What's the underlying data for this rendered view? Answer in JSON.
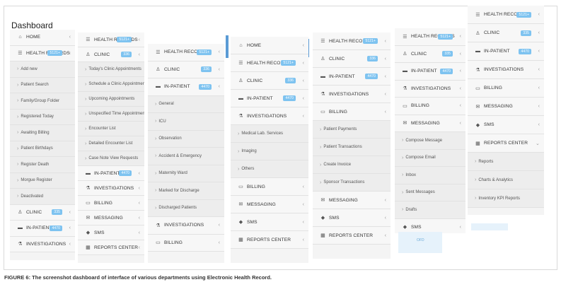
{
  "dashboard_title": "Dashboard",
  "caption": "FIGURE 6: The screenshot dashboard of interface of various departments using Electronic Health Record.",
  "panel1": [
    {
      "icon": "home-icon",
      "glyph": "⌂",
      "label": "HOME",
      "type": "head"
    },
    {
      "icon": "list-icon",
      "glyph": "☰",
      "label": "HEALTH RECORDS",
      "badge": "5121+",
      "type": "head"
    },
    {
      "label": "Add new",
      "type": "sub"
    },
    {
      "label": "Patient Search",
      "type": "sub"
    },
    {
      "label": "Family/Group Folder",
      "type": "sub"
    },
    {
      "label": "Registered Today",
      "type": "sub"
    },
    {
      "label": "Awaiting Billing",
      "type": "sub"
    },
    {
      "label": "Patient Birthdays",
      "type": "sub"
    },
    {
      "label": "Register Death",
      "type": "sub"
    },
    {
      "label": "Morgue Register",
      "type": "sub"
    },
    {
      "label": "Deactivated",
      "type": "sub"
    },
    {
      "icon": "user-icon",
      "glyph": "♙",
      "label": "CLINIC",
      "badge": "335",
      "type": "head"
    },
    {
      "icon": "bed-icon",
      "glyph": "▬",
      "label": "IN-PATIENT",
      "badge": "4470",
      "type": "head"
    },
    {
      "icon": "flask-icon",
      "glyph": "⚗",
      "label": "INVESTIGATIONS",
      "type": "head"
    }
  ],
  "panel2": [
    {
      "icon": "list-icon",
      "glyph": "☰",
      "label": "HEALTH RECORDS",
      "badge": "5121+",
      "type": "head"
    },
    {
      "icon": "user-icon",
      "glyph": "♙",
      "label": "CLINIC",
      "badge": "336",
      "type": "head"
    },
    {
      "label": "Today's Clinic Appointments",
      "type": "sub"
    },
    {
      "label": "Schedule a Clinic Appointment",
      "type": "sub"
    },
    {
      "label": "Upcoming Appointments",
      "type": "sub"
    },
    {
      "label": "Unspecified Time Appointments",
      "type": "sub"
    },
    {
      "label": "Encounter List",
      "type": "sub"
    },
    {
      "label": "Detailed Encounter List",
      "type": "sub"
    },
    {
      "label": "Case Note View Requests",
      "type": "sub"
    },
    {
      "icon": "bed-icon",
      "glyph": "▬",
      "label": "IN-PATIENT",
      "badge": "4470",
      "type": "head"
    },
    {
      "icon": "flask-icon",
      "glyph": "⚗",
      "label": "INVESTIGATIONS",
      "type": "head"
    },
    {
      "icon": "billing-icon",
      "glyph": "▭",
      "label": "BILLING",
      "type": "head"
    },
    {
      "icon": "envelope-icon",
      "glyph": "✉",
      "label": "MESSAGING",
      "type": "head"
    },
    {
      "icon": "chat-icon",
      "glyph": "◆",
      "label": "SMS",
      "type": "head"
    },
    {
      "icon": "report-icon",
      "glyph": "▦",
      "label": "REPORTS CENTER",
      "type": "head"
    }
  ],
  "panel3": [
    {
      "icon": "list-icon",
      "glyph": "☰",
      "label": "HEALTH RECORDS",
      "badge": "5121+",
      "type": "head"
    },
    {
      "icon": "user-icon",
      "glyph": "♙",
      "label": "CLINIC",
      "badge": "336",
      "type": "head"
    },
    {
      "icon": "bed-icon",
      "glyph": "▬",
      "label": "IN-PATIENT",
      "badge": "4470",
      "type": "head"
    },
    {
      "label": "General",
      "type": "sub"
    },
    {
      "label": "ICU",
      "type": "sub"
    },
    {
      "label": "Observation",
      "type": "sub"
    },
    {
      "label": "Accident & Emergency",
      "type": "sub"
    },
    {
      "label": "Maternity Ward",
      "type": "sub"
    },
    {
      "label": "Marked for Discharge",
      "type": "sub"
    },
    {
      "label": "Discharged Patients",
      "type": "sub"
    },
    {
      "icon": "flask-icon",
      "glyph": "⚗",
      "label": "INVESTIGATIONS",
      "type": "head"
    },
    {
      "icon": "billing-icon",
      "glyph": "▭",
      "label": "BILLING",
      "type": "head"
    }
  ],
  "panel4": [
    {
      "icon": "home-icon",
      "glyph": "⌂",
      "label": "HOME",
      "type": "head"
    },
    {
      "icon": "list-icon",
      "glyph": "☰",
      "label": "HEALTH RECORDS",
      "badge": "5121+",
      "type": "head"
    },
    {
      "icon": "user-icon",
      "glyph": "♙",
      "label": "CLINIC",
      "badge": "336",
      "type": "head"
    },
    {
      "icon": "bed-icon",
      "glyph": "▬",
      "label": "IN-PATIENT",
      "badge": "4470",
      "type": "head"
    },
    {
      "icon": "flask-icon",
      "glyph": "⚗",
      "label": "INVESTIGATIONS",
      "type": "head"
    },
    {
      "label": "Medical Lab. Services",
      "type": "sub"
    },
    {
      "label": "Imaging",
      "type": "sub"
    },
    {
      "label": "Others",
      "type": "sub"
    },
    {
      "icon": "billing-icon",
      "glyph": "▭",
      "label": "BILLING",
      "type": "head"
    },
    {
      "icon": "envelope-icon",
      "glyph": "✉",
      "label": "MESSAGING",
      "type": "head"
    },
    {
      "icon": "chat-icon",
      "glyph": "◆",
      "label": "SMS",
      "type": "head"
    },
    {
      "icon": "report-icon",
      "glyph": "▦",
      "label": "REPORTS CENTER",
      "type": "head"
    }
  ],
  "panel5": [
    {
      "icon": "list-icon",
      "glyph": "☰",
      "label": "HEALTH RECORDS",
      "badge": "5121+",
      "type": "head"
    },
    {
      "icon": "user-icon",
      "glyph": "♙",
      "label": "CLINIC",
      "badge": "336",
      "type": "head"
    },
    {
      "icon": "bed-icon",
      "glyph": "▬",
      "label": "IN-PATIENT",
      "badge": "4470",
      "type": "head"
    },
    {
      "icon": "flask-icon",
      "glyph": "⚗",
      "label": "INVESTIGATIONS",
      "type": "head"
    },
    {
      "icon": "billing-icon",
      "glyph": "▭",
      "label": "BILLING",
      "type": "head"
    },
    {
      "label": "Patient Payments",
      "type": "sub"
    },
    {
      "label": "Patient Transactions",
      "type": "sub"
    },
    {
      "label": "Create Invoice",
      "type": "sub"
    },
    {
      "label": "Sponsor Transactions",
      "type": "sub"
    },
    {
      "icon": "envelope-icon",
      "glyph": "✉",
      "label": "MESSAGING",
      "type": "head"
    },
    {
      "icon": "chat-icon",
      "glyph": "◆",
      "label": "SMS",
      "type": "head"
    },
    {
      "icon": "report-icon",
      "glyph": "▦",
      "label": "REPORTS CENTER",
      "type": "head"
    }
  ],
  "panel6": [
    {
      "icon": "list-icon",
      "glyph": "☰",
      "label": "HEALTH RECORDS",
      "badge": "5121+",
      "type": "head"
    },
    {
      "icon": "user-icon",
      "glyph": "♙",
      "label": "CLINIC",
      "badge": "335",
      "type": "head"
    },
    {
      "icon": "bed-icon",
      "glyph": "▬",
      "label": "IN-PATIENT",
      "badge": "4470",
      "type": "head"
    },
    {
      "icon": "flask-icon",
      "glyph": "⚗",
      "label": "INVESTIGATIONS",
      "type": "head"
    },
    {
      "icon": "billing-icon",
      "glyph": "▭",
      "label": "BILLING",
      "type": "head"
    },
    {
      "icon": "envelope-icon",
      "glyph": "✉",
      "label": "MESSAGING",
      "type": "head"
    },
    {
      "label": "Compose Message",
      "type": "sub"
    },
    {
      "label": "Compose Email",
      "type": "sub"
    },
    {
      "label": "Inbox",
      "type": "sub"
    },
    {
      "label": "Sent Messages",
      "type": "sub"
    },
    {
      "label": "Drafts",
      "type": "sub"
    },
    {
      "icon": "chat-icon",
      "glyph": "◆",
      "label": "SMS",
      "type": "head"
    }
  ],
  "panel6_ofd": "OFD",
  "panel7": [
    {
      "icon": "list-icon",
      "glyph": "☰",
      "label": "HEALTH RECORDS",
      "badge": "5121+",
      "type": "head"
    },
    {
      "icon": "user-icon",
      "glyph": "♙",
      "label": "CLINIC",
      "badge": "335",
      "type": "head"
    },
    {
      "icon": "bed-icon",
      "glyph": "▬",
      "label": "IN-PATIENT",
      "badge": "4470",
      "type": "head"
    },
    {
      "icon": "flask-icon",
      "glyph": "⚗",
      "label": "INVESTIGATIONS",
      "type": "head"
    },
    {
      "icon": "billing-icon",
      "glyph": "▭",
      "label": "BILLING",
      "type": "head"
    },
    {
      "icon": "envelope-icon",
      "glyph": "✉",
      "label": "MESSAGING",
      "type": "head"
    },
    {
      "icon": "chat-icon",
      "glyph": "◆",
      "label": "SMS",
      "type": "head"
    },
    {
      "icon": "report-icon",
      "glyph": "▦",
      "label": "REPORTS CENTER",
      "type": "head",
      "open": true
    },
    {
      "label": "Reports",
      "type": "sub"
    },
    {
      "label": "Charts & Analytics",
      "type": "sub"
    },
    {
      "label": "Inventory KPI Reports",
      "type": "sub"
    }
  ]
}
